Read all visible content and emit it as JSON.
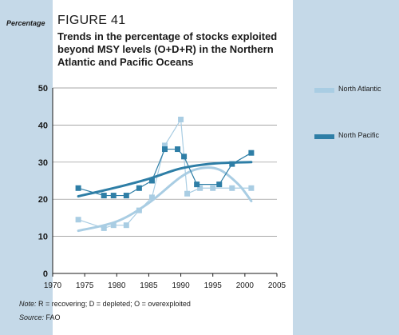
{
  "side_label": "Percentage",
  "figure_number": "FIGURE 41",
  "figure_title": "Trends in the percentage of stocks exploited beyond MSY levels (O+D+R) in the Northern Atlantic and Pacific Oceans",
  "note_label": "Note:",
  "note_text": "R = recovering; D = depleted; O = overexploited",
  "source_label": "Source:",
  "source_text": "FAO",
  "colors": {
    "north_atlantic": "#a9cde3",
    "north_pacific": "#2e7ea6",
    "band": "#c5d9e8"
  },
  "chart_data": {
    "type": "line",
    "x_ticks": [
      "1970",
      "1975",
      "1980",
      "1985",
      "1990",
      "1995",
      "2000",
      "2005"
    ],
    "y_ticks": [
      "0",
      "10",
      "20",
      "30",
      "40",
      "50"
    ],
    "xlim": [
      1970,
      2005
    ],
    "ylim": [
      0,
      50
    ],
    "legend_position": "right",
    "series": [
      {
        "name": "North Atlantic",
        "color": "#a9cde3",
        "x": [
          1974,
          1978,
          1979.5,
          1981.5,
          1983.5,
          1985.5,
          1987.5,
          1990,
          1991,
          1993,
          1995,
          1998,
          2001
        ],
        "y": [
          14.5,
          12.2,
          13,
          13,
          17,
          20.5,
          34.5,
          41.5,
          21.5,
          23,
          23,
          23,
          23
        ],
        "trend": {
          "x": [
            1974,
            1980,
            1985,
            1990,
            1993,
            1996,
            1999,
            2001
          ],
          "y": [
            11.5,
            14,
            19,
            26,
            28.3,
            28,
            24,
            19.5
          ]
        }
      },
      {
        "name": "North Pacific",
        "color": "#2e7ea6",
        "x": [
          1974,
          1978,
          1979.5,
          1981.5,
          1983.5,
          1985.5,
          1987.5,
          1989.5,
          1990.5,
          1992.5,
          1996,
          1998,
          2001
        ],
        "y": [
          23,
          21,
          21,
          21,
          23,
          25,
          33.5,
          33.5,
          31.5,
          24,
          24,
          29.5,
          32.5
        ],
        "trend": {
          "x": [
            1974,
            1980,
            1985,
            1990,
            1995,
            2001
          ],
          "y": [
            20.8,
            23.2,
            25.5,
            28.3,
            29.6,
            30
          ]
        }
      }
    ]
  }
}
